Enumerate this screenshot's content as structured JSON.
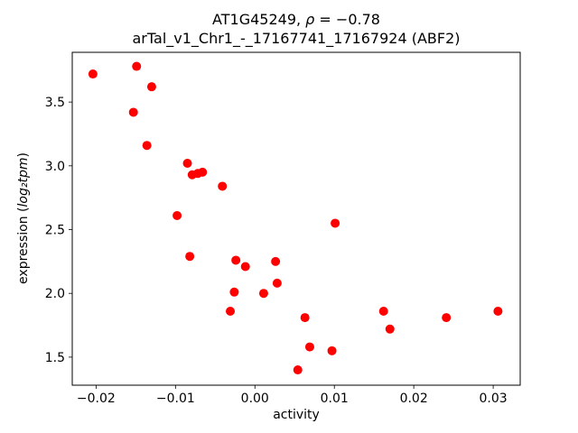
{
  "chart_data": {
    "type": "scatter",
    "title": {
      "line1_prefix": "AT1G45249, ",
      "line1_math": "ρ",
      "line1_suffix": " = −0.78",
      "line2": "arTal_v1_Chr1_-_17167741_17167924 (ABF2)"
    },
    "xlabel": "activity",
    "ylabel_prefix": "expression (",
    "ylabel_math": "log₂tpm",
    "ylabel_suffix": ")",
    "xlim": [
      -0.023,
      0.0334
    ],
    "ylim": [
      1.28,
      3.89
    ],
    "xticks": [
      -0.02,
      -0.01,
      0.0,
      0.01,
      0.02,
      0.03
    ],
    "xtick_labels": [
      "−0.02",
      "−0.01",
      "0.00",
      "0.01",
      "0.02",
      "0.03"
    ],
    "yticks": [
      1.5,
      2.0,
      2.5,
      3.0,
      3.5
    ],
    "ytick_labels": [
      "1.5",
      "2.0",
      "2.5",
      "3.0",
      "3.5"
    ],
    "marker_color": "#ff0000",
    "axis_color": "#000000",
    "legend": "none",
    "grid": false,
    "points": [
      [
        -0.0204,
        3.72
      ],
      [
        -0.0153,
        3.42
      ],
      [
        -0.0149,
        3.78
      ],
      [
        -0.013,
        3.62
      ],
      [
        -0.0136,
        3.16
      ],
      [
        -0.0098,
        2.61
      ],
      [
        -0.0085,
        3.02
      ],
      [
        -0.0079,
        2.93
      ],
      [
        -0.0072,
        2.94
      ],
      [
        -0.0066,
        2.95
      ],
      [
        -0.0082,
        2.29
      ],
      [
        -0.0041,
        2.84
      ],
      [
        -0.0024,
        2.26
      ],
      [
        -0.0031,
        1.86
      ],
      [
        -0.0026,
        2.01
      ],
      [
        -0.0012,
        2.21
      ],
      [
        0.0011,
        2.0
      ],
      [
        0.0026,
        2.25
      ],
      [
        0.0028,
        2.08
      ],
      [
        0.0054,
        1.4
      ],
      [
        0.0063,
        1.81
      ],
      [
        0.0069,
        1.58
      ],
      [
        0.0101,
        2.55
      ],
      [
        0.0097,
        1.55
      ],
      [
        0.0162,
        1.86
      ],
      [
        0.017,
        1.72
      ],
      [
        0.0241,
        1.81
      ],
      [
        0.0306,
        1.86
      ]
    ]
  }
}
